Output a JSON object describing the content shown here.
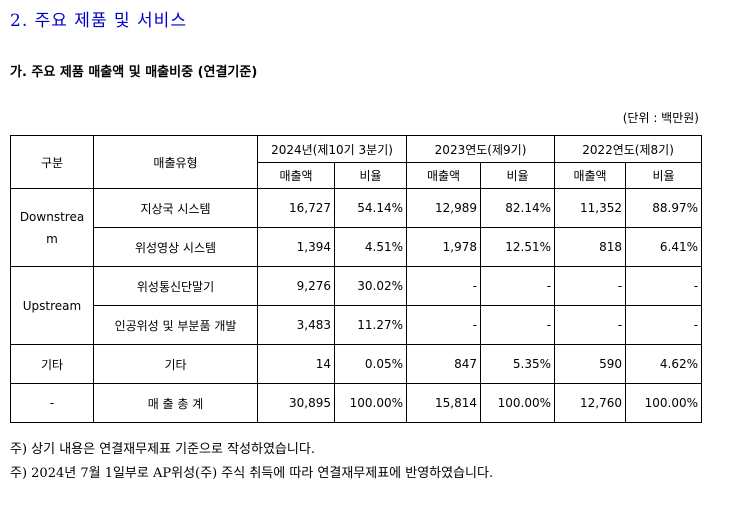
{
  "section_title": "2. 주요 제품 및 서비스",
  "subsection_title": "가. 주요 제품 매출액 및 매출비중 (연결기준)",
  "unit_label": "(단위 : 백만원)",
  "table": {
    "header": {
      "category": "구분",
      "type": "매출유형",
      "periods": [
        "2024년(제10기 3분기)",
        "2023연도(제9기)",
        "2022연도(제8기)"
      ],
      "sales": "매출액",
      "ratio": "비율"
    },
    "groups": {
      "downstream": "Downstream",
      "upstream": "Upstream",
      "other": "기타",
      "total": "-"
    },
    "rows": [
      {
        "type": "지상국 시스템",
        "v": [
          "16,727",
          "54.14%",
          "12,989",
          "82.14%",
          "11,352",
          "88.97%"
        ]
      },
      {
        "type": "위성영상 시스템",
        "v": [
          "1,394",
          "4.51%",
          "1,978",
          "12.51%",
          "818",
          "6.41%"
        ]
      },
      {
        "type": "위성통신단말기",
        "v": [
          "9,276",
          "30.02%",
          "-",
          "-",
          "-",
          "-"
        ]
      },
      {
        "type": "인공위성 및 부분품 개발",
        "v": [
          "3,483",
          "11.27%",
          "-",
          "-",
          "-",
          "-"
        ]
      },
      {
        "type": "기타",
        "v": [
          "14",
          "0.05%",
          "847",
          "5.35%",
          "590",
          "4.62%"
        ]
      },
      {
        "type": "매 출 총 계",
        "v": [
          "30,895",
          "100.00%",
          "15,814",
          "100.00%",
          "12,760",
          "100.00%"
        ]
      }
    ]
  },
  "notes": [
    "주) 상기 내용은 연결재무제표 기준으로 작성하였습니다.",
    "주) 2024년 7월 1일부로 AP위성(주) 주식 취득에 따라 연결재무제표에 반영하였습니다."
  ]
}
